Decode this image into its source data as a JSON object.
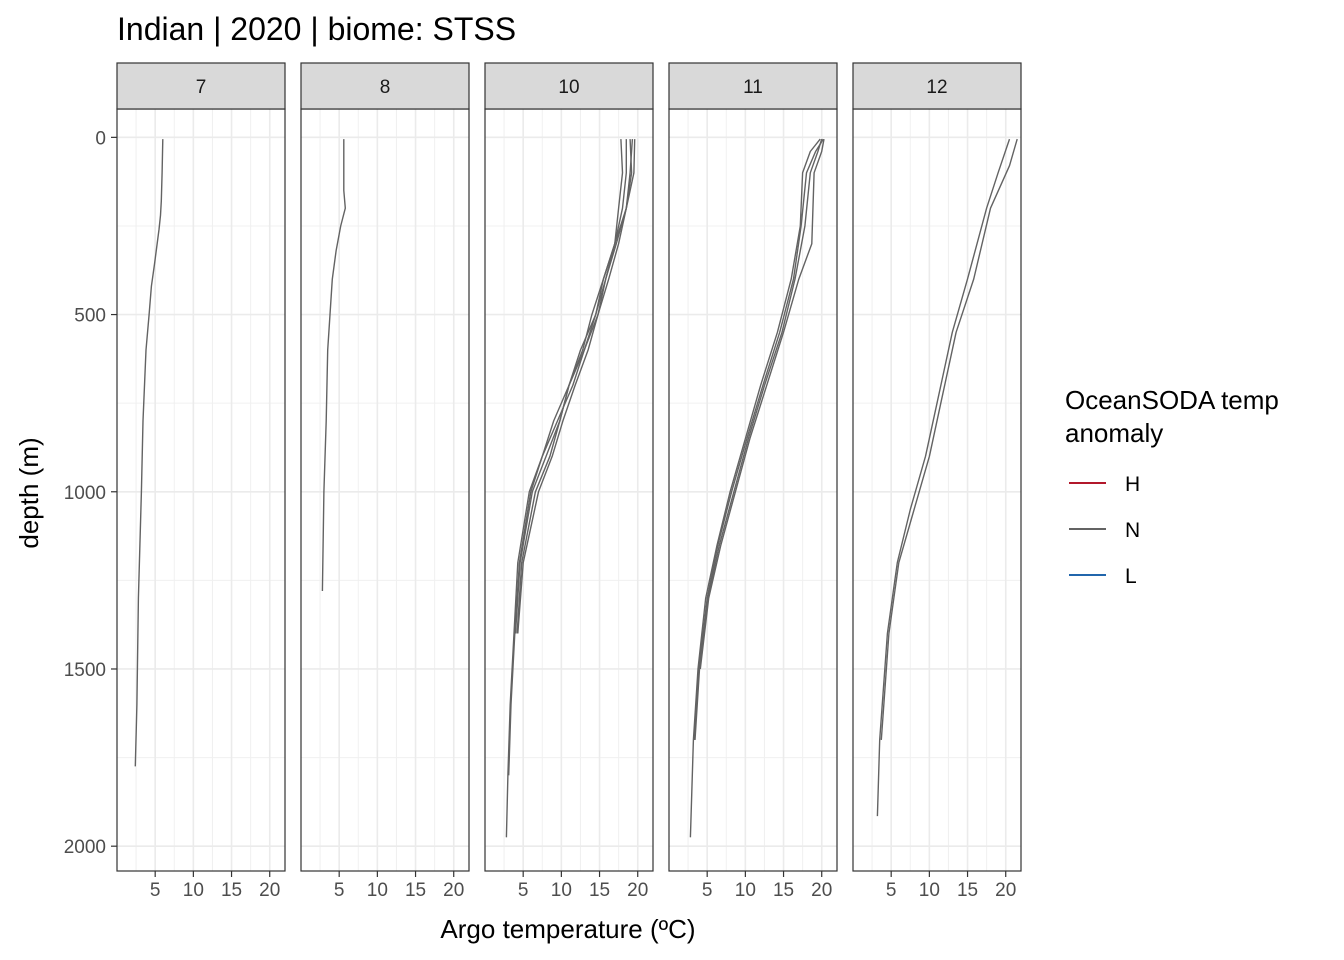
{
  "title": "Indian | 2020 | biome: STSS",
  "chart_data": {
    "type": "line",
    "title": "Indian | 2020 | biome: STSS",
    "xlabel": "Argo temperature (ºC)",
    "ylabel": "depth (m)",
    "xlim": [
      0,
      22
    ],
    "ylim": [
      2070,
      -80
    ],
    "y_reversed": true,
    "x_ticks": [
      5,
      10,
      15,
      20
    ],
    "y_ticks": [
      0,
      500,
      1000,
      1500,
      2000
    ],
    "grid": true,
    "legend": {
      "title": "OceanSODA temp anomaly",
      "title_lines": [
        "OceanSODA temp",
        "anomaly"
      ],
      "position": "right",
      "entries": [
        {
          "label": "H",
          "color": "#b2182b"
        },
        {
          "label": "N",
          "color": "#636363"
        },
        {
          "label": "L",
          "color": "#2166ac"
        }
      ]
    },
    "facets": [
      {
        "label": "7",
        "series": [
          {
            "anomaly": "N",
            "x": [
              6.0,
              5.9,
              5.8,
              5.7,
              5.5,
              4.9,
              4.5,
              4.2,
              3.8,
              3.4,
              3.2,
              2.8,
              2.6,
              2.4
            ],
            "y": [
              5,
              100,
              180,
              220,
              260,
              360,
              420,
              500,
              600,
              800,
              1000,
              1300,
              1600,
              1775
            ]
          }
        ]
      },
      {
        "label": "8",
        "series": [
          {
            "anomaly": "N",
            "x": [
              5.6,
              5.6,
              5.6,
              5.8,
              5.2,
              4.6,
              4.1,
              3.8,
              3.5,
              3.3,
              3.0,
              2.8
            ],
            "y": [
              5,
              80,
              150,
              200,
              250,
              320,
              400,
              500,
              600,
              800,
              1000,
              1280
            ]
          }
        ]
      },
      {
        "label": "10",
        "series": [
          {
            "anomaly": "N",
            "x": [
              17.8,
              18.0,
              17.5,
              17.0,
              15.5,
              14.5,
              12.5,
              11.0,
              9.0,
              7.5,
              5.8,
              4.3,
              3.8,
              3.3,
              3.0,
              2.8
            ],
            "y": [
              5,
              100,
              200,
              300,
              400,
              500,
              600,
              700,
              800,
              900,
              1000,
              1200,
              1400,
              1600,
              1800,
              1975
            ]
          },
          {
            "anomaly": "N",
            "x": [
              18.5,
              18.5,
              18.0,
              17.0,
              15.8,
              14.5,
              13.0,
              11.5,
              9.5,
              7.5,
              6.0,
              4.5,
              3.9,
              3.4,
              3.1
            ],
            "y": [
              5,
              100,
              200,
              300,
              400,
              500,
              600,
              700,
              800,
              900,
              1000,
              1200,
              1400,
              1600,
              1800
            ]
          },
          {
            "anomaly": "N",
            "x": [
              19.3,
              19.0,
              18.5,
              17.2,
              15.8,
              14.8,
              13.0,
              11.0,
              9.8,
              8.0,
              6.2,
              4.6,
              4.0
            ],
            "y": [
              5,
              100,
              200,
              300,
              400,
              500,
              600,
              700,
              800,
              900,
              1000,
              1200,
              1400
            ]
          },
          {
            "anomaly": "N",
            "x": [
              19.6,
              19.5,
              18.5,
              17.0,
              15.5,
              14.0,
              12.8,
              11.0,
              9.8,
              8.5,
              6.6,
              4.8,
              4.2
            ],
            "y": [
              5,
              100,
              200,
              300,
              400,
              500,
              600,
              700,
              800,
              900,
              1000,
              1200,
              1400
            ]
          },
          {
            "anomaly": "N",
            "x": [
              19.0,
              19.2,
              18.5,
              17.5,
              16.2,
              14.8,
              13.5,
              11.8,
              10.2,
              8.8,
              7.0,
              5.0,
              4.3
            ],
            "y": [
              5,
              100,
              200,
              300,
              400,
              500,
              600,
              700,
              800,
              900,
              1000,
              1200,
              1400
            ]
          }
        ]
      },
      {
        "label": "11",
        "series": [
          {
            "anomaly": "N",
            "x": [
              19.8,
              18.5,
              17.5,
              17.2,
              16.0,
              14.2,
              12.0,
              10.0,
              8.0,
              6.3,
              4.8,
              3.8,
              3.2,
              2.8
            ],
            "y": [
              5,
              40,
              100,
              250,
              400,
              550,
              700,
              850,
              1000,
              1150,
              1300,
              1500,
              1700,
              1975
            ]
          },
          {
            "anomaly": "N",
            "x": [
              20.2,
              19.2,
              18.0,
              17.3,
              16.3,
              14.5,
              12.3,
              10.2,
              8.2,
              6.4,
              5.0,
              3.9,
              3.3
            ],
            "y": [
              5,
              40,
              100,
              250,
              400,
              550,
              700,
              850,
              1000,
              1150,
              1300,
              1500,
              1700
            ]
          },
          {
            "anomaly": "N",
            "x": [
              20.0,
              19.5,
              18.5,
              17.8,
              16.5,
              14.8,
              12.5,
              10.4,
              8.5,
              6.6,
              5.1,
              4.0,
              3.4
            ],
            "y": [
              5,
              40,
              100,
              250,
              400,
              550,
              700,
              850,
              1000,
              1150,
              1300,
              1500,
              1700
            ]
          },
          {
            "anomaly": "N",
            "x": [
              20.3,
              20.0,
              19.0,
              18.7,
              17.0,
              15.0,
              12.8,
              10.6,
              8.7,
              6.8,
              5.2,
              4.1
            ],
            "y": [
              5,
              40,
              100,
              300,
              400,
              550,
              700,
              850,
              1000,
              1150,
              1300,
              1500
            ]
          }
        ]
      },
      {
        "label": "12",
        "series": [
          {
            "anomaly": "N",
            "x": [
              20.5,
              19.0,
              17.5,
              15.0,
              13.0,
              11.0,
              9.5,
              7.5,
              5.8,
              4.5,
              3.5,
              3.2
            ],
            "y": [
              5,
              100,
              200,
              400,
              550,
              750,
              900,
              1050,
              1200,
              1400,
              1700,
              1915
            ]
          },
          {
            "anomaly": "N",
            "x": [
              21.5,
              20.5,
              18.0,
              15.8,
              13.5,
              11.5,
              10.0,
              8.0,
              6.0,
              4.7,
              3.7
            ],
            "y": [
              5,
              80,
              200,
              400,
              550,
              750,
              900,
              1050,
              1200,
              1400,
              1700
            ]
          }
        ]
      }
    ]
  }
}
